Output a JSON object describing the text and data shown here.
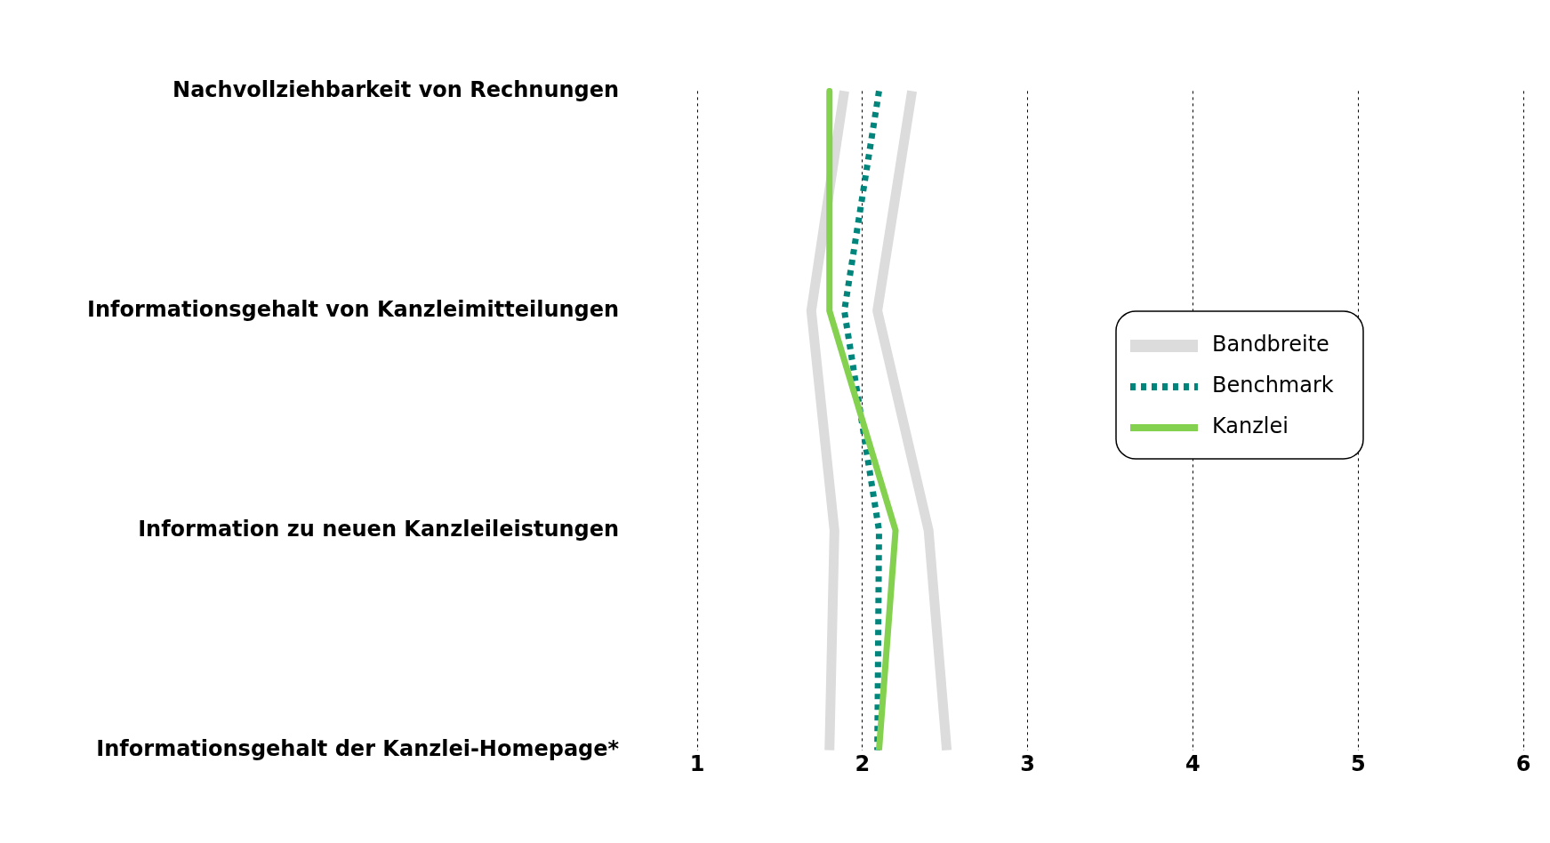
{
  "chart_data": {
    "type": "line",
    "orientation": "horizontal",
    "categories": [
      "Nachvollziehbarkeit von Rechnungen",
      "Informationsgehalt von Kanzleimitteilungen",
      "Information zu neuen Kanzleileistungen",
      "Informationsgehalt der Kanzlei-Homepage*"
    ],
    "series": [
      {
        "name": "Bandbreite",
        "color": "#dcdcdc",
        "line_style": "solid",
        "values": [
          1.89,
          1.69,
          1.83,
          1.8
        ]
      },
      {
        "color": "#dcdcdc",
        "line_style": "solid",
        "values": [
          2.3,
          2.09,
          2.4,
          2.51
        ]
      },
      {
        "name": "Benchmark",
        "color": "#00857c",
        "line_style": "dotted",
        "values": [
          2.1,
          1.89,
          2.1,
          2.09
        ]
      },
      {
        "name": "Kanzlei",
        "color": "#84d14f",
        "line_style": "solid",
        "values": [
          1.8,
          1.8,
          2.2,
          2.1
        ]
      }
    ],
    "xlim": [
      1,
      6
    ],
    "xticks": [
      1,
      2,
      3,
      4,
      5,
      6
    ],
    "grid": "x",
    "legend": "right",
    "marker": "none"
  }
}
